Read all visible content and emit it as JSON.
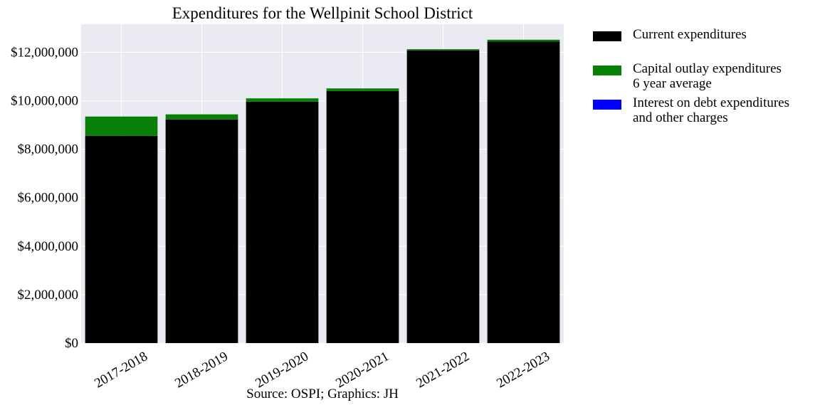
{
  "chart_data": {
    "type": "bar",
    "stacked": true,
    "title": "Expenditures for the Wellpinit School District",
    "source": "Source: OSPI; Graphics: JH",
    "categories": [
      "2017-2018",
      "2018-2019",
      "2019-2020",
      "2020-2021",
      "2021-2022",
      "2022-2023"
    ],
    "series": [
      {
        "name": "Current expenditures",
        "color": "#000000",
        "values": [
          8550000,
          9230000,
          9960000,
          10400000,
          12080000,
          12450000
        ]
      },
      {
        "name": "Capital outlay expenditures\n6 year average",
        "color": "#088008",
        "values": [
          800000,
          210000,
          140000,
          110000,
          50000,
          70000
        ]
      },
      {
        "name": "Interest on debt expenditures\nand other charges",
        "color": "#0000ff",
        "values": [
          0,
          0,
          0,
          0,
          0,
          0
        ]
      }
    ],
    "yticks": [
      "$0",
      "$2,000,000",
      "$4,000,000",
      "$6,000,000",
      "$8,000,000",
      "$10,000,000",
      "$12,000,000"
    ],
    "ylim": [
      0,
      13160000
    ],
    "grid": true,
    "legend_position": "outside-right"
  }
}
